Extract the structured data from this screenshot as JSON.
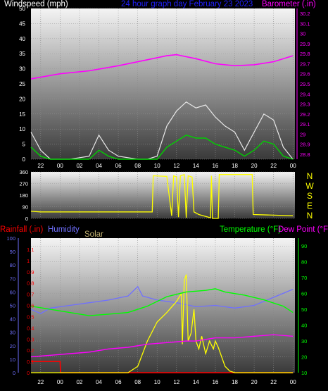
{
  "header": {
    "windspeed": "Windspeed (mph)",
    "title": "24 hour graph day   February 23 2023",
    "barometer": "Barometer (.in)"
  },
  "bottom_header": {
    "rainfall": "Rainfall (.in)",
    "humidity": "Humidity",
    "solar": "Solar",
    "temperature": "Temperature (°F)",
    "dewpoint": "Dew Point (°F)"
  },
  "colors": {
    "windspeed": "#ffffff",
    "title": "#2020ff",
    "barometer": "#ff00ff",
    "wind_gust": "#e8e8e8",
    "wind_avg": "#00d000",
    "wind_dir": "#ffff00",
    "rain": "#ff0000",
    "humidity": "#7070ff",
    "solar": "#ffff00",
    "temperature": "#00ff00",
    "dewpoint": "#ff00ff",
    "compass": "#ffff00"
  },
  "chart_data": [
    {
      "type": "line",
      "x_tick_labels": [
        "22",
        "00",
        "02",
        "04",
        "06",
        "08",
        "10",
        "12",
        "14",
        "16",
        "18",
        "20",
        "22",
        "00"
      ],
      "x_ticks_hours": [
        22,
        24,
        26,
        28,
        30,
        32,
        34,
        36,
        38,
        40,
        42,
        44,
        46,
        48
      ],
      "x_range_hours": [
        21,
        48.2
      ],
      "y_left": {
        "label": "Windspeed (mph)",
        "range": [
          0,
          50
        ],
        "ticks": [
          0,
          5,
          10,
          15,
          20,
          25,
          30,
          35,
          40,
          45,
          50
        ]
      },
      "y_right": {
        "label": "Barometer (.in)",
        "range": [
          28.75,
          30.25
        ],
        "ticks": [
          "28.8",
          "28.9",
          "29",
          "29.1",
          "29.2",
          "29.3",
          "29.4",
          "29.5",
          "29.6",
          "29.7",
          "29.8",
          "29.9",
          "30",
          "30.1",
          "30.2"
        ]
      },
      "series": [
        {
          "name": "Barometer (.in)",
          "axis": "right",
          "points": [
            [
              21,
              29.55
            ],
            [
              24,
              29.6
            ],
            [
              27,
              29.63
            ],
            [
              30,
              29.68
            ],
            [
              33,
              29.74
            ],
            [
              35,
              29.78
            ],
            [
              36,
              29.79
            ],
            [
              38,
              29.75
            ],
            [
              40,
              29.7
            ],
            [
              42,
              29.68
            ],
            [
              44,
              29.69
            ],
            [
              46,
              29.72
            ],
            [
              48,
              29.78
            ]
          ]
        },
        {
          "name": "Wind gust (mph)",
          "axis": "left",
          "points": [
            [
              21,
              9
            ],
            [
              22,
              3
            ],
            [
              23,
              0
            ],
            [
              25,
              0
            ],
            [
              27,
              1
            ],
            [
              28,
              8
            ],
            [
              29,
              3
            ],
            [
              30,
              1
            ],
            [
              32,
              0
            ],
            [
              33,
              0
            ],
            [
              34,
              1
            ],
            [
              35,
              11
            ],
            [
              36,
              16
            ],
            [
              37,
              19
            ],
            [
              38,
              17
            ],
            [
              39,
              18
            ],
            [
              40,
              14
            ],
            [
              41,
              11
            ],
            [
              42,
              9
            ],
            [
              43,
              3
            ],
            [
              44,
              9
            ],
            [
              45,
              15
            ],
            [
              46,
              13
            ],
            [
              47,
              4
            ],
            [
              48,
              0
            ]
          ]
        },
        {
          "name": "Wind average (mph)",
          "axis": "left",
          "points": [
            [
              21,
              4
            ],
            [
              22,
              1
            ],
            [
              23,
              0
            ],
            [
              25,
              0
            ],
            [
              27,
              0
            ],
            [
              28,
              3
            ],
            [
              29,
              1
            ],
            [
              30,
              0
            ],
            [
              32,
              0
            ],
            [
              34,
              0
            ],
            [
              35,
              4
            ],
            [
              36,
              6
            ],
            [
              37,
              8
            ],
            [
              38,
              7
            ],
            [
              39,
              7
            ],
            [
              40,
              5
            ],
            [
              41,
              4
            ],
            [
              42,
              3
            ],
            [
              43,
              1
            ],
            [
              44,
              3
            ],
            [
              45,
              6
            ],
            [
              46,
              5
            ],
            [
              47,
              1
            ],
            [
              48,
              0
            ]
          ]
        }
      ]
    },
    {
      "type": "line",
      "y_left": {
        "range": [
          0,
          360
        ],
        "ticks": [
          0,
          90,
          180,
          270,
          360
        ]
      },
      "y_right_labels": [
        "N",
        "W",
        "S",
        "E",
        "N"
      ],
      "series": [
        {
          "name": "Wind direction (°)",
          "points": [
            [
              21,
              55
            ],
            [
              22,
              50
            ],
            [
              24,
              50
            ],
            [
              26,
              50
            ],
            [
              28,
              50
            ],
            [
              30,
              50
            ],
            [
              32,
              50
            ],
            [
              33.5,
              50
            ],
            [
              33.6,
              330
            ],
            [
              35,
              325
            ],
            [
              35.5,
              20
            ],
            [
              35.7,
              330
            ],
            [
              36,
              320
            ],
            [
              36.2,
              10
            ],
            [
              36.4,
              330
            ],
            [
              36.8,
              340
            ],
            [
              37,
              5
            ],
            [
              37.2,
              330
            ],
            [
              37.6,
              320
            ],
            [
              37.8,
              50
            ],
            [
              38.3,
              30
            ],
            [
              39.5,
              5
            ],
            [
              39.6,
              330
            ],
            [
              39.7,
              0
            ],
            [
              40.3,
              0
            ],
            [
              40.4,
              340
            ],
            [
              43.8,
              340
            ],
            [
              43.9,
              30
            ],
            [
              46,
              25
            ],
            [
              48,
              20
            ]
          ]
        }
      ]
    },
    {
      "type": "line",
      "y_far_left": {
        "label": "Humidity",
        "range": [
          0,
          100
        ],
        "ticks": [
          0,
          10,
          20,
          30,
          40,
          50,
          60,
          70,
          80,
          90,
          100
        ]
      },
      "y_left": {
        "label": "Rainfall (.in)",
        "range": [
          0,
          1.2
        ],
        "ticks": [
          "0",
          "0.1",
          "0.2",
          "0.3",
          "0.4",
          "0.5",
          "0.6",
          "0.7",
          "0.8",
          "0.9",
          "1",
          "1.1"
        ]
      },
      "y_right": {
        "label": "Temperature (°F)",
        "range": [
          10,
          95
        ],
        "ticks": [
          10,
          20,
          30,
          40,
          50,
          60,
          70,
          80,
          90
        ]
      },
      "series": [
        {
          "name": "Rainfall (.in)",
          "axis": "left",
          "points": [
            [
              21,
              0.1
            ],
            [
              24,
              0.1
            ],
            [
              24.05,
              0
            ],
            [
              48,
              0
            ]
          ]
        },
        {
          "name": "Humidity",
          "axis": "far_left",
          "points": [
            [
              21,
              47
            ],
            [
              22,
              44
            ],
            [
              23,
              48
            ],
            [
              25,
              50
            ],
            [
              27,
              52
            ],
            [
              29,
              54
            ],
            [
              31,
              57
            ],
            [
              32,
              64
            ],
            [
              32.5,
              57
            ],
            [
              34,
              54
            ],
            [
              36,
              52
            ],
            [
              38,
              49
            ],
            [
              40,
              50
            ],
            [
              42,
              48
            ],
            [
              44,
              50
            ],
            [
              46,
              56
            ],
            [
              48,
              62
            ]
          ]
        },
        {
          "name": "Solar",
          "axis": "right",
          "points": [
            [
              21,
              10
            ],
            [
              31,
              10
            ],
            [
              32,
              14
            ],
            [
              33,
              30
            ],
            [
              34,
              42
            ],
            [
              35,
              48
            ],
            [
              36,
              55
            ],
            [
              36.5,
              60
            ],
            [
              36.6,
              28
            ],
            [
              36.8,
              68
            ],
            [
              37,
              72
            ],
            [
              37.2,
              30
            ],
            [
              37.5,
              35
            ],
            [
              37.8,
              50
            ],
            [
              38,
              30
            ],
            [
              38.3,
              25
            ],
            [
              38.6,
              33
            ],
            [
              39,
              22
            ],
            [
              39.4,
              30
            ],
            [
              39.8,
              25
            ],
            [
              40,
              30
            ],
            [
              40.3,
              26
            ],
            [
              41,
              14
            ],
            [
              41.5,
              11
            ],
            [
              42,
              10
            ],
            [
              48,
              10
            ]
          ]
        },
        {
          "name": "Temperature (°F)",
          "axis": "right",
          "points": [
            [
              21,
              52
            ],
            [
              23,
              50
            ],
            [
              25,
              48
            ],
            [
              27,
              46
            ],
            [
              29,
              47
            ],
            [
              31,
              48
            ],
            [
              33,
              52
            ],
            [
              35,
              58
            ],
            [
              37,
              61
            ],
            [
              39,
              62
            ],
            [
              40,
              63
            ],
            [
              41,
              61
            ],
            [
              43,
              59
            ],
            [
              45,
              56
            ],
            [
              47,
              52
            ],
            [
              48,
              48
            ]
          ]
        },
        {
          "name": "Dew Point (°F)",
          "axis": "right",
          "points": [
            [
              21,
              20
            ],
            [
              23,
              21
            ],
            [
              25,
              22
            ],
            [
              27,
              23
            ],
            [
              29,
              25
            ],
            [
              31,
              26
            ],
            [
              33,
              28
            ],
            [
              35,
              29
            ],
            [
              37,
              30
            ],
            [
              38,
              30
            ],
            [
              40,
              32
            ],
            [
              42,
              32
            ],
            [
              44,
              33
            ],
            [
              46,
              34
            ],
            [
              48,
              33
            ]
          ]
        }
      ]
    }
  ]
}
